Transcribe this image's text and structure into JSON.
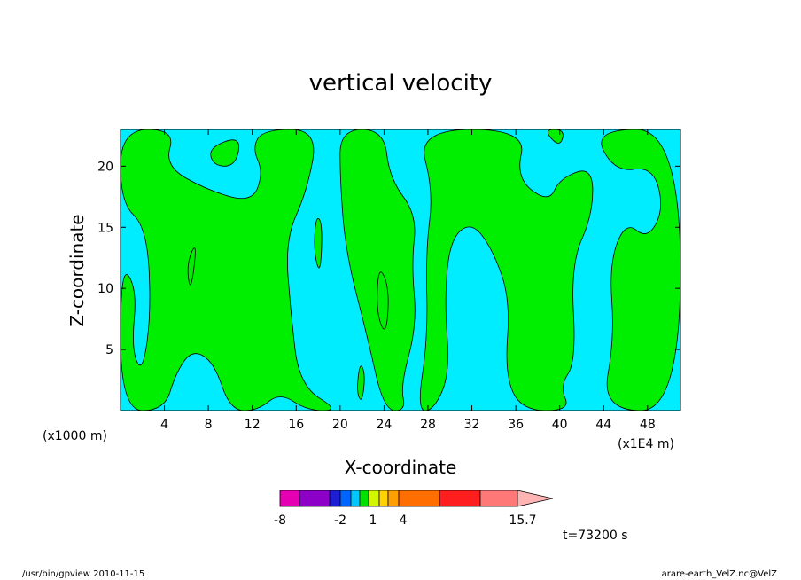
{
  "chart_data": {
    "type": "heatmap",
    "title": "vertical velocity",
    "xlabel": "X-coordinate",
    "ylabel": "Z-coordinate",
    "x_unit_left": "(x1000 m)",
    "x_unit_right": "(x1E4 m)",
    "xlim": [
      0,
      51
    ],
    "ylim": [
      0,
      23
    ],
    "x_ticks": [
      4,
      8,
      12,
      16,
      20,
      24,
      28,
      32,
      36,
      40,
      44,
      48
    ],
    "y_ticks": [
      5,
      10,
      15,
      20
    ],
    "background_color": "#00ecff",
    "field_color": "#00ee00",
    "contour_color": "#000000",
    "colorbar": {
      "labels": [
        "-8",
        "-2",
        "1",
        "4",
        "15.7"
      ],
      "colors": [
        "#e600b4",
        "#8c00c8",
        "#1e1ed2",
        "#0064ff",
        "#00c8ff",
        "#00e100",
        "#d2f500",
        "#ffd200",
        "#ffa000",
        "#ff6e00",
        "#ff1e1e",
        "#ff7878",
        "#ffb4b4"
      ]
    },
    "time_label": "t=73200 s"
  },
  "footer": {
    "left": "/usr/bin/gpview   2010-11-15",
    "right": "arare-earth_VelZ.nc@VelZ"
  }
}
